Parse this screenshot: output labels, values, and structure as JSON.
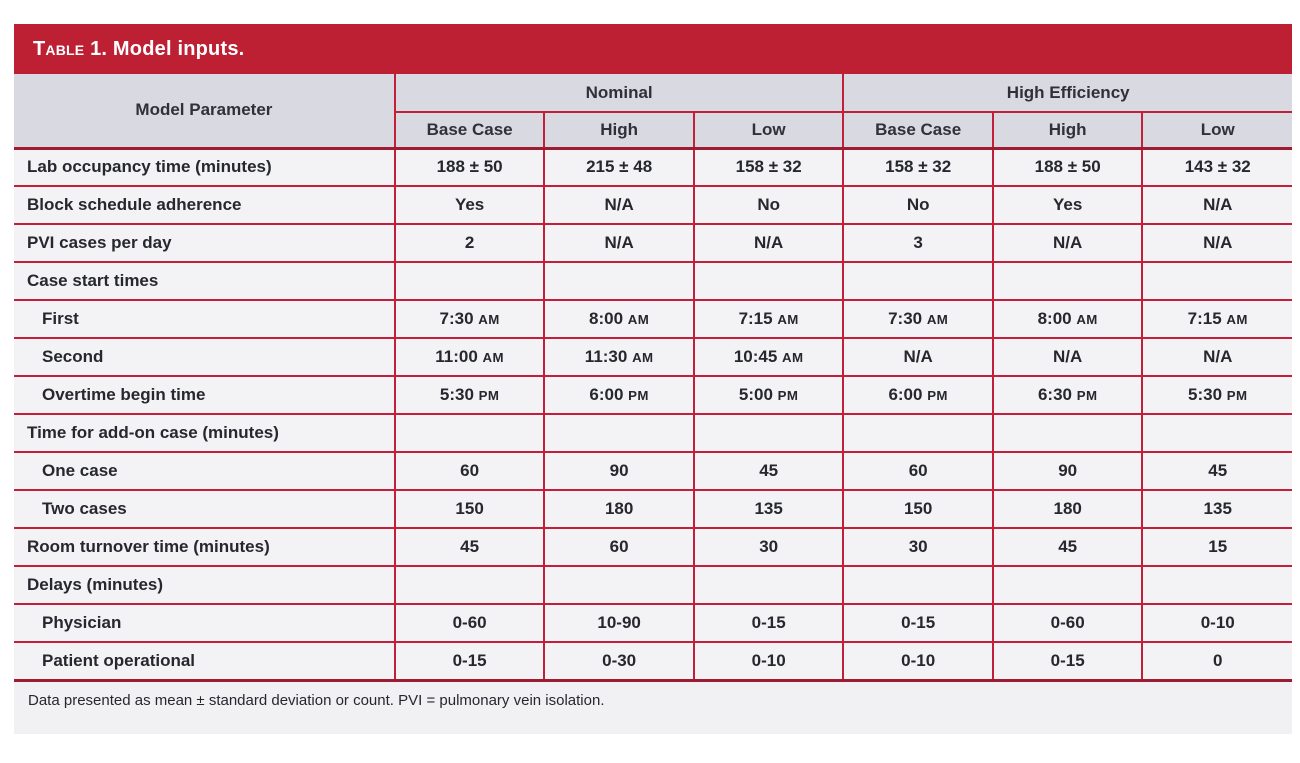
{
  "colors": {
    "accent_red": "#be2033",
    "grid_red": "#c2203a",
    "dark_rule": "#9e1c31",
    "header_bg": "#d9d9e1",
    "row_bg": "#f3f3f5",
    "footnote_bg": "#f1f1f3"
  },
  "table": {
    "title_smallcaps": "Table",
    "title_rest": "1. Model inputs.",
    "param_header": "Model Parameter",
    "groups": [
      {
        "label": "Nominal"
      },
      {
        "label": "High Efficiency"
      }
    ],
    "subheaders": [
      "Base Case",
      "High",
      "Low",
      "Base Case",
      "High",
      "Low"
    ],
    "rows": [
      {
        "label": "Lab occupancy time (minutes)",
        "indent": false,
        "values": [
          "188 ± 50",
          "215 ± 48",
          "158 ± 32",
          "158 ± 32",
          "188 ± 50",
          "143 ± 32"
        ]
      },
      {
        "label": "Block schedule adherence",
        "indent": false,
        "values": [
          "Yes",
          "N/A",
          "No",
          "No",
          "Yes",
          "N/A"
        ]
      },
      {
        "label": "PVI cases per day",
        "indent": false,
        "values": [
          "2",
          "N/A",
          "N/A",
          "3",
          "N/A",
          "N/A"
        ]
      },
      {
        "label": "Case start times",
        "indent": false,
        "values": [
          "",
          "",
          "",
          "",
          "",
          ""
        ]
      },
      {
        "label": "First",
        "indent": true,
        "values": [
          "7:30 AM",
          "8:00 AM",
          "7:15 AM",
          "7:30 AM",
          "8:00 AM",
          "7:15 AM"
        ]
      },
      {
        "label": "Second",
        "indent": true,
        "values": [
          "11:00 AM",
          "11:30 AM",
          "10:45 AM",
          "N/A",
          "N/A",
          "N/A"
        ]
      },
      {
        "label": "Overtime begin time",
        "indent": true,
        "values": [
          "5:30 PM",
          "6:00 PM",
          "5:00 PM",
          "6:00 PM",
          "6:30 PM",
          "5:30 PM"
        ]
      },
      {
        "label": "Time for add-on case (minutes)",
        "indent": false,
        "values": [
          "",
          "",
          "",
          "",
          "",
          ""
        ]
      },
      {
        "label": "One case",
        "indent": true,
        "values": [
          "60",
          "90",
          "45",
          "60",
          "90",
          "45"
        ]
      },
      {
        "label": "Two cases",
        "indent": true,
        "values": [
          "150",
          "180",
          "135",
          "150",
          "180",
          "135"
        ]
      },
      {
        "label": "Room turnover time (minutes)",
        "indent": false,
        "values": [
          "45",
          "60",
          "30",
          "30",
          "45",
          "15"
        ]
      },
      {
        "label": "Delays (minutes)",
        "indent": false,
        "values": [
          "",
          "",
          "",
          "",
          "",
          ""
        ]
      },
      {
        "label": "Physician",
        "indent": true,
        "values": [
          "0-60",
          "10-90",
          "0-15",
          "0-15",
          "0-60",
          "0-10"
        ]
      },
      {
        "label": "Patient operational",
        "indent": true,
        "values": [
          "0-15",
          "0-30",
          "0-10",
          "0-10",
          "0-15",
          "0"
        ]
      }
    ],
    "footnote": "Data presented as mean ± standard deviation or count. PVI = pulmonary vein isolation."
  }
}
